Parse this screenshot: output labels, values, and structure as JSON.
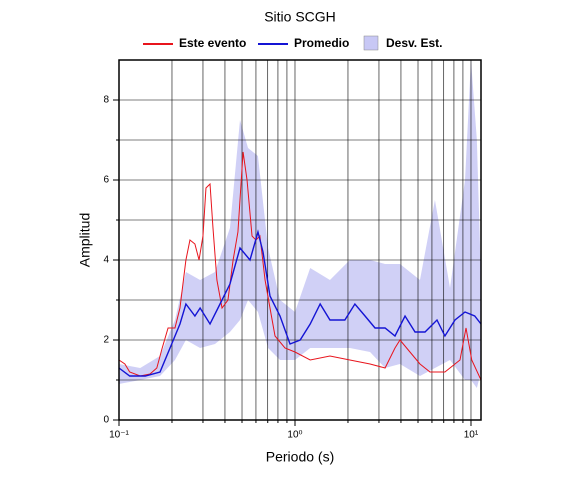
{
  "chart_data": {
    "type": "line",
    "title": "Sitio SCGH",
    "xlabel": "Periodo (s)",
    "ylabel": "Amplitud",
    "log_x": true,
    "grid": true,
    "legend": "top",
    "xlim": [
      0.1,
      11.4
    ],
    "xticks": [
      {
        "value": 0.1,
        "label": "10⁻¹"
      },
      {
        "value": 1,
        "label": "10⁰"
      },
      {
        "value": 10,
        "label": "10¹"
      }
    ],
    "ylim": [
      0,
      9
    ],
    "yticks": [
      0,
      2,
      4,
      6,
      8
    ],
    "yminor": [
      1,
      3,
      5,
      7
    ],
    "series": [
      {
        "name": "Este evento",
        "color": "#e8141c",
        "x": [
          0.1,
          0.108,
          0.115,
          0.132,
          0.15,
          0.164,
          0.176,
          0.19,
          0.208,
          0.222,
          0.24,
          0.253,
          0.27,
          0.285,
          0.3,
          0.312,
          0.329,
          0.342,
          0.36,
          0.385,
          0.416,
          0.445,
          0.474,
          0.507,
          0.534,
          0.57,
          0.6,
          0.632,
          0.676,
          0.721,
          0.77,
          0.877,
          1.0,
          1.22,
          1.58,
          2.05,
          2.67,
          3.25,
          3.7,
          3.95,
          4.5,
          5.13,
          5.85,
          7.11,
          8.66,
          9.37,
          10.1,
          11.4
        ],
        "values": [
          1.5,
          1.4,
          1.2,
          1.1,
          1.15,
          1.3,
          1.8,
          2.3,
          2.3,
          2.8,
          4.0,
          4.5,
          4.4,
          4.0,
          4.6,
          5.8,
          5.9,
          4.8,
          3.5,
          2.8,
          3.0,
          4.0,
          4.7,
          6.7,
          6.0,
          4.6,
          4.5,
          4.6,
          3.5,
          2.8,
          2.1,
          1.8,
          1.7,
          1.5,
          1.6,
          1.5,
          1.4,
          1.3,
          1.8,
          2.0,
          1.7,
          1.4,
          1.2,
          1.2,
          1.5,
          2.3,
          1.5,
          1.0
        ]
      },
      {
        "name": "Promedio",
        "color": "#1414d4",
        "x": [
          0.1,
          0.115,
          0.141,
          0.171,
          0.195,
          0.222,
          0.24,
          0.27,
          0.289,
          0.329,
          0.375,
          0.427,
          0.487,
          0.555,
          0.616,
          0.658,
          0.721,
          0.822,
          0.937,
          1.07,
          1.22,
          1.39,
          1.58,
          1.92,
          2.19,
          2.5,
          2.85,
          3.25,
          3.7,
          4.22,
          4.81,
          5.48,
          6.41,
          7.11,
          8.11,
          9.25,
          10.5,
          11.4
        ],
        "values": [
          1.3,
          1.1,
          1.1,
          1.2,
          1.8,
          2.4,
          2.9,
          2.6,
          2.8,
          2.4,
          2.9,
          3.4,
          4.3,
          4.0,
          4.7,
          4.2,
          3.1,
          2.6,
          1.9,
          2.0,
          2.4,
          2.9,
          2.5,
          2.5,
          2.9,
          2.6,
          2.3,
          2.3,
          2.1,
          2.6,
          2.2,
          2.2,
          2.5,
          2.1,
          2.5,
          2.7,
          2.6,
          2.4
        ]
      },
      {
        "name": "Desv. Est.",
        "color": "#c8c8f5",
        "x": [
          0.1,
          0.132,
          0.171,
          0.208,
          0.24,
          0.289,
          0.351,
          0.427,
          0.487,
          0.541,
          0.616,
          0.703,
          0.822,
          1.0,
          1.22,
          1.58,
          2.05,
          2.67,
          3.25,
          3.95,
          5.13,
          6.24,
          7.6,
          9.25,
          10.0,
          10.8,
          11.4
        ],
        "upper": [
          1.4,
          1.3,
          1.6,
          2.5,
          3.7,
          3.5,
          3.7,
          4.8,
          7.5,
          6.8,
          6.6,
          4.3,
          3.0,
          2.7,
          3.8,
          3.5,
          4.0,
          4.0,
          3.9,
          3.9,
          3.5,
          5.5,
          3.3,
          6.0,
          9.0,
          7.0,
          3.5
        ],
        "lower": [
          0.9,
          1.0,
          1.1,
          1.5,
          2.0,
          1.8,
          1.9,
          2.2,
          2.5,
          3.0,
          2.7,
          1.8,
          1.5,
          1.5,
          1.8,
          1.8,
          1.8,
          1.7,
          1.3,
          1.4,
          1.1,
          1.3,
          1.5,
          1.0,
          1.0,
          0.8,
          1.2
        ]
      }
    ]
  }
}
